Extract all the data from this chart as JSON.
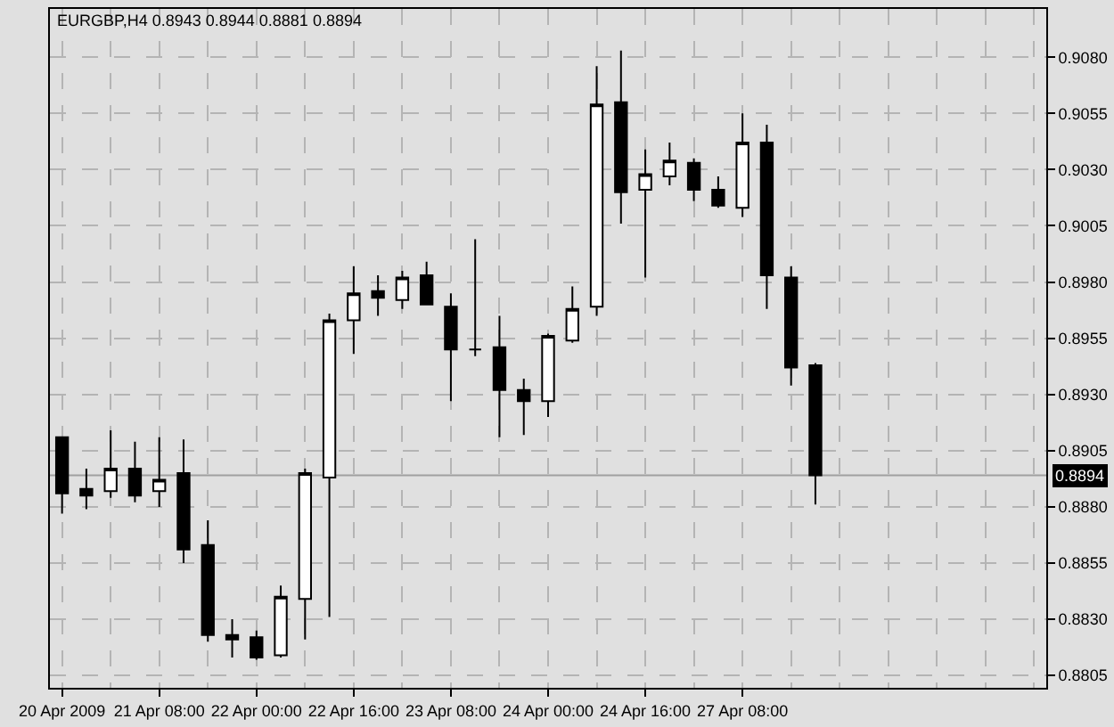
{
  "chart_data": {
    "type": "candlestick",
    "title": "EURGBP,H4 0.8943 0.8944 0.8881 0.8894",
    "categories": [
      "20 Apr 2009",
      null,
      null,
      null,
      "21 Apr 08:00",
      null,
      null,
      null,
      "22 Apr 00:00",
      null,
      null,
      null,
      "22 Apr 16:00",
      null,
      null,
      null,
      "23 Apr 08:00",
      null,
      null,
      null,
      "24 Apr 00:00",
      null,
      null,
      null,
      "24 Apr 16:00",
      null,
      null,
      null,
      "27 Apr 08:00",
      null,
      null,
      null,
      null,
      null,
      null,
      null,
      null,
      null,
      null,
      null,
      null
    ],
    "ohlc": [
      [
        0.8911,
        0.8911,
        0.8877,
        0.8886
      ],
      [
        0.8888,
        0.8897,
        0.8879,
        0.8885
      ],
      [
        0.8887,
        0.8914,
        0.8884,
        0.8897
      ],
      [
        0.8897,
        0.8909,
        0.8882,
        0.8885
      ],
      [
        0.8887,
        0.8911,
        0.888,
        0.8892
      ],
      [
        0.8895,
        0.891,
        0.8855,
        0.8861
      ],
      [
        0.8863,
        0.8874,
        0.882,
        0.8823
      ],
      [
        0.8823,
        0.883,
        0.8813,
        0.8821
      ],
      [
        0.8822,
        0.8825,
        0.8812,
        0.8813
      ],
      [
        0.8814,
        0.8845,
        0.8813,
        0.884
      ],
      [
        0.8839,
        0.8897,
        0.8821,
        0.8895
      ],
      [
        0.8893,
        0.8966,
        0.8831,
        0.8963
      ],
      [
        0.8963,
        0.8987,
        0.8948,
        0.8975
      ],
      [
        0.8976,
        0.8983,
        0.8965,
        0.8973
      ],
      [
        0.8972,
        0.8985,
        0.8968,
        0.8982
      ],
      [
        0.8983,
        0.8989,
        0.897,
        0.897
      ],
      [
        0.8969,
        0.8975,
        0.8927,
        0.895
      ],
      [
        0.895,
        0.8999,
        0.8947,
        0.895
      ],
      [
        0.8951,
        0.8965,
        0.8911,
        0.8932
      ],
      [
        0.8932,
        0.8937,
        0.8912,
        0.8927
      ],
      [
        0.8927,
        0.8957,
        0.892,
        0.8956
      ],
      [
        0.8954,
        0.8978,
        0.8953,
        0.8968
      ],
      [
        0.8969,
        0.9076,
        0.8965,
        0.9059
      ],
      [
        0.906,
        0.9083,
        0.9006,
        0.902
      ],
      [
        0.9021,
        0.9039,
        0.8982,
        0.9028
      ],
      [
        0.9027,
        0.9042,
        0.9023,
        0.9034
      ],
      [
        0.9033,
        0.9035,
        0.9016,
        0.9021
      ],
      [
        0.9021,
        0.9027,
        0.9013,
        0.9014
      ],
      [
        0.9013,
        0.9055,
        0.9009,
        0.9042
      ],
      [
        0.9042,
        0.905,
        0.8968,
        0.8983
      ],
      [
        0.8982,
        0.8987,
        0.8934,
        0.8942
      ],
      [
        0.8943,
        0.8944,
        0.8881,
        0.8894
      ],
      null,
      null,
      null,
      null,
      null,
      null,
      null,
      null,
      null
    ],
    "ylim": [
      0.87995,
      0.91015
    ],
    "yticks": [
      {
        "value": 0.8805,
        "label": "0.8805"
      },
      {
        "value": 0.883,
        "label": "0.8830"
      },
      {
        "value": 0.8855,
        "label": "0.8855"
      },
      {
        "value": 0.888,
        "label": "0.8880"
      },
      {
        "value": 0.8905,
        "label": "0.8905"
      },
      {
        "value": 0.893,
        "label": "0.8930"
      },
      {
        "value": 0.8955,
        "label": "0.8955"
      },
      {
        "value": 0.898,
        "label": "0.8980"
      },
      {
        "value": 0.9005,
        "label": "0.9005"
      },
      {
        "value": 0.903,
        "label": "0.9030"
      },
      {
        "value": 0.9055,
        "label": "0.9055"
      },
      {
        "value": 0.908,
        "label": "0.9080"
      }
    ],
    "grid": true,
    "ref_lines": [
      {
        "axis": "y",
        "value": 0.8894,
        "label": "0.8894",
        "color": "#a0a0a0"
      }
    ]
  }
}
